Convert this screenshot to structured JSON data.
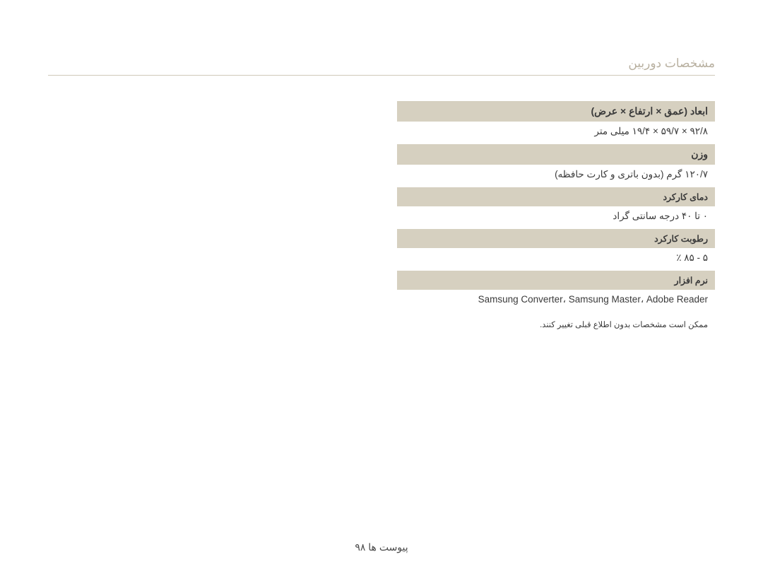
{
  "pageTitle": "مشخصات دوربین",
  "rows": [
    {
      "type": "header",
      "styleClass": "spec-header",
      "text": "ابعاد (عمق × ارتفاع × عرض)"
    },
    {
      "type": "value",
      "styleClass": "spec-value",
      "text": "۹۲/۸ × ۵۹/۷ × ۱۹/۴ میلی متر"
    },
    {
      "type": "header",
      "styleClass": "spec-header",
      "text": "وزن"
    },
    {
      "type": "value",
      "styleClass": "spec-value",
      "text": "۱۲۰/۷ گرم (بدون باتری و کارت حافظه)"
    },
    {
      "type": "header",
      "styleClass": "spec-header sub",
      "text": "دمای کارکرد"
    },
    {
      "type": "value",
      "styleClass": "spec-value",
      "text": "۰ تا ۴۰ درجه سانتی گراد"
    },
    {
      "type": "header",
      "styleClass": "spec-header sub",
      "text": "رطوبت کارکرد"
    },
    {
      "type": "value",
      "styleClass": "spec-value",
      "text": "۵ - ۸۵ ٪"
    },
    {
      "type": "header",
      "styleClass": "spec-header sub",
      "text": "نرم افزار"
    },
    {
      "type": "value",
      "styleClass": "spec-value",
      "text": "Samsung Converter، Samsung Master، Adobe Reader"
    },
    {
      "type": "note",
      "styleClass": "footnote",
      "text": "ممکن است مشخصات بدون اطلاع قبلی تغییر کنند."
    }
  ],
  "footer": "پیوست ها  ۹۸",
  "colors": {
    "headerBg": "#d6d0c0",
    "textColor": "#3a3a3a",
    "titleColor": "#b8b0a0",
    "dividerColor": "#cfc8b8",
    "pageBg": "#ffffff"
  }
}
